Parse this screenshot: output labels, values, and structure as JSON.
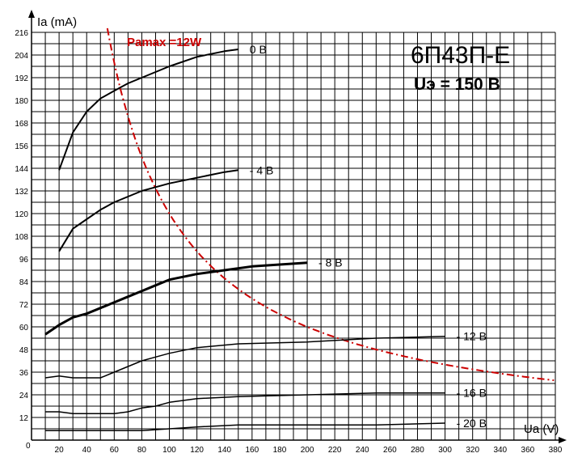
{
  "chart_data": {
    "type": "line",
    "title": "6П43П-Е",
    "subtitle": "Uэ = 150 В",
    "xlabel": "Ua (V)",
    "ylabel": "Ia (mA)",
    "xlim": [
      0,
      380
    ],
    "ylim": [
      0,
      216
    ],
    "x_ticks": [
      20,
      40,
      60,
      80,
      100,
      120,
      140,
      160,
      180,
      200,
      220,
      240,
      260,
      280,
      300,
      320,
      340,
      360,
      380
    ],
    "y_ticks": [
      12,
      24,
      36,
      48,
      60,
      72,
      84,
      96,
      108,
      120,
      132,
      144,
      156,
      168,
      180,
      192,
      204,
      216
    ],
    "origin_label": "0",
    "grid": true,
    "series": [
      {
        "name": "0 В",
        "color": "#000000",
        "width": 2,
        "points": [
          [
            20,
            143
          ],
          [
            30,
            163
          ],
          [
            40,
            174
          ],
          [
            50,
            181
          ],
          [
            60,
            185
          ],
          [
            70,
            189
          ],
          [
            80,
            192
          ],
          [
            90,
            195
          ],
          [
            100,
            198
          ],
          [
            120,
            203
          ],
          [
            140,
            206
          ],
          [
            150,
            207
          ]
        ]
      },
      {
        "name": "- 4 В",
        "color": "#000000",
        "width": 2,
        "points": [
          [
            20,
            100
          ],
          [
            30,
            112
          ],
          [
            40,
            117
          ],
          [
            50,
            122
          ],
          [
            60,
            126
          ],
          [
            70,
            129
          ],
          [
            80,
            132
          ],
          [
            90,
            134
          ],
          [
            100,
            136
          ],
          [
            120,
            139
          ],
          [
            140,
            142
          ],
          [
            150,
            143
          ]
        ]
      },
      {
        "name": "- 8 В",
        "color": "#000000",
        "width": 3,
        "points": [
          [
            10,
            56
          ],
          [
            20,
            61
          ],
          [
            30,
            65
          ],
          [
            40,
            67
          ],
          [
            50,
            70
          ],
          [
            60,
            73
          ],
          [
            70,
            76
          ],
          [
            80,
            79
          ],
          [
            90,
            82
          ],
          [
            100,
            85
          ],
          [
            120,
            88
          ],
          [
            140,
            90
          ],
          [
            160,
            92
          ],
          [
            180,
            93
          ],
          [
            200,
            94
          ]
        ]
      },
      {
        "name": "- 12 В",
        "color": "#000000",
        "width": 1.5,
        "points": [
          [
            10,
            33
          ],
          [
            20,
            34
          ],
          [
            30,
            33
          ],
          [
            40,
            33
          ],
          [
            50,
            33
          ],
          [
            60,
            36
          ],
          [
            70,
            39
          ],
          [
            80,
            42
          ],
          [
            90,
            44
          ],
          [
            100,
            46
          ],
          [
            120,
            49
          ],
          [
            150,
            51
          ],
          [
            200,
            52
          ],
          [
            250,
            54
          ],
          [
            300,
            55
          ]
        ]
      },
      {
        "name": "- 16 В",
        "color": "#000000",
        "width": 1.5,
        "points": [
          [
            10,
            15
          ],
          [
            20,
            15
          ],
          [
            30,
            14
          ],
          [
            40,
            14
          ],
          [
            50,
            14
          ],
          [
            60,
            14
          ],
          [
            70,
            15
          ],
          [
            80,
            17
          ],
          [
            90,
            18
          ],
          [
            100,
            20
          ],
          [
            120,
            22
          ],
          [
            150,
            23
          ],
          [
            200,
            24
          ],
          [
            250,
            25
          ],
          [
            300,
            25
          ]
        ]
      },
      {
        "name": "- 20 В",
        "color": "#000000",
        "width": 1.5,
        "points": [
          [
            10,
            5
          ],
          [
            30,
            5
          ],
          [
            50,
            5
          ],
          [
            70,
            5
          ],
          [
            80,
            5
          ],
          [
            100,
            6
          ],
          [
            120,
            7
          ],
          [
            150,
            8
          ],
          [
            200,
            8
          ],
          [
            250,
            8
          ],
          [
            300,
            9
          ]
        ]
      }
    ],
    "annotations": [
      {
        "text": "Pamax =12W",
        "color": "#cc0000"
      }
    ],
    "pmax_curve": {
      "power_w": 12,
      "color": "#cc0000",
      "x_from": 55,
      "x_to": 380
    }
  }
}
